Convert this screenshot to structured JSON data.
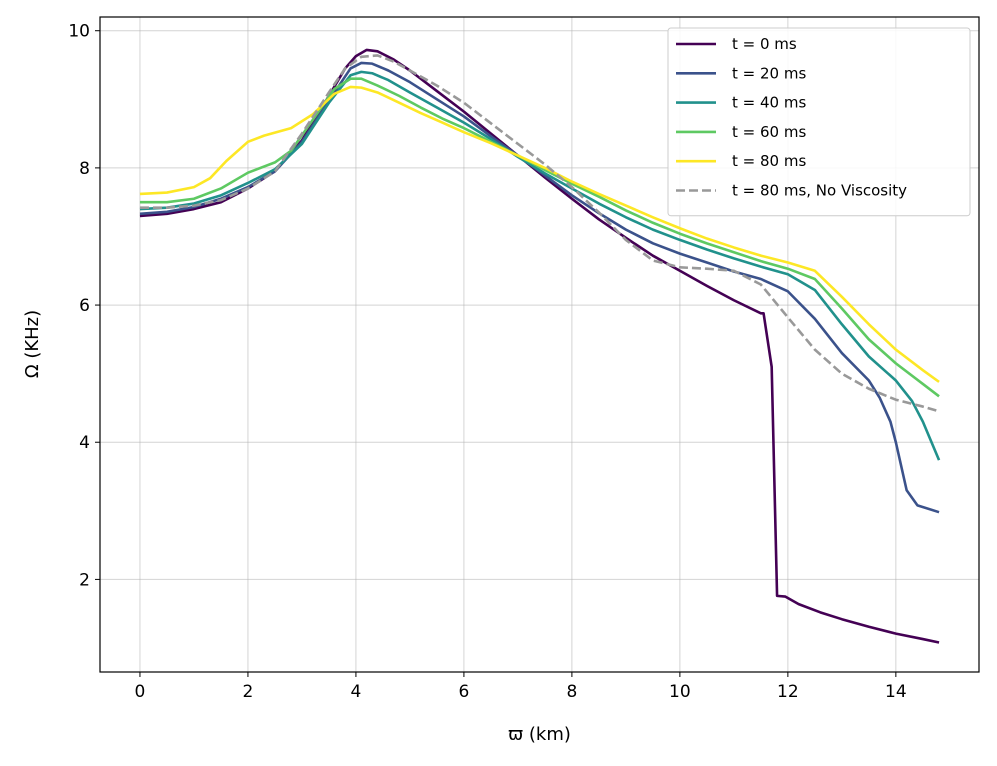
{
  "chart_data": {
    "type": "line",
    "title": "",
    "xlabel": "ϖ (km)",
    "ylabel": "Ω (KHz)",
    "xlim": [
      -0.74,
      15.54
    ],
    "ylim": [
      0.65,
      10.2
    ],
    "xticks": [
      0,
      2,
      4,
      6,
      8,
      10,
      12,
      14
    ],
    "yticks": [
      2,
      4,
      6,
      8,
      10
    ],
    "grid": true,
    "legend_position": "top-right",
    "series": [
      {
        "name": "t = 0 ms",
        "color": "#440154",
        "style": "solid",
        "x": [
          0,
          0.5,
          1,
          1.5,
          2,
          2.5,
          3,
          3.5,
          3.8,
          4.0,
          4.2,
          4.4,
          4.7,
          5,
          5.5,
          6,
          6.5,
          7,
          7.5,
          8,
          8.5,
          9,
          9.5,
          10,
          10.5,
          11,
          11.5,
          11.55,
          11.7,
          11.8,
          11.95,
          12.2,
          12.6,
          13,
          13.5,
          14,
          14.5,
          14.8
        ],
        "y": [
          7.3,
          7.33,
          7.4,
          7.5,
          7.7,
          7.95,
          8.4,
          9.05,
          9.45,
          9.63,
          9.72,
          9.7,
          9.58,
          9.42,
          9.12,
          8.82,
          8.5,
          8.18,
          7.86,
          7.55,
          7.25,
          6.98,
          6.72,
          6.5,
          6.28,
          6.07,
          5.88,
          5.88,
          5.1,
          1.76,
          1.75,
          1.64,
          1.52,
          1.42,
          1.31,
          1.21,
          1.13,
          1.08
        ]
      },
      {
        "name": "t = 20 ms",
        "color": "#3b528b",
        "style": "solid",
        "x": [
          0,
          0.5,
          1,
          1.5,
          2,
          2.5,
          3,
          3.5,
          3.9,
          4.1,
          4.3,
          4.6,
          5,
          5.5,
          6,
          6.5,
          7,
          7.5,
          8,
          8.5,
          9,
          9.5,
          10,
          10.5,
          11,
          11.5,
          12,
          12.5,
          13,
          13.5,
          13.7,
          13.9,
          14.0,
          14.2,
          14.4,
          14.8
        ],
        "y": [
          7.33,
          7.36,
          7.43,
          7.55,
          7.72,
          7.95,
          8.38,
          8.98,
          9.45,
          9.53,
          9.52,
          9.42,
          9.25,
          9.0,
          8.75,
          8.46,
          8.18,
          7.89,
          7.6,
          7.34,
          7.1,
          6.9,
          6.75,
          6.62,
          6.49,
          6.38,
          6.2,
          5.8,
          5.3,
          4.9,
          4.65,
          4.3,
          4.0,
          3.3,
          3.08,
          2.98
        ]
      },
      {
        "name": "t = 40 ms",
        "color": "#21918c",
        "style": "solid",
        "x": [
          0,
          0.5,
          1,
          1.5,
          2,
          2.5,
          3,
          3.5,
          3.9,
          4.1,
          4.3,
          4.6,
          5,
          5.5,
          6,
          6.5,
          7,
          7.5,
          8,
          8.5,
          9,
          9.5,
          10,
          10.5,
          11,
          11.5,
          12,
          12.5,
          13,
          13.5,
          14,
          14.3,
          14.5,
          14.8
        ],
        "y": [
          7.4,
          7.42,
          7.48,
          7.6,
          7.78,
          7.98,
          8.35,
          8.95,
          9.35,
          9.4,
          9.38,
          9.28,
          9.1,
          8.88,
          8.66,
          8.42,
          8.16,
          7.92,
          7.7,
          7.48,
          7.28,
          7.1,
          6.95,
          6.81,
          6.68,
          6.56,
          6.45,
          6.22,
          5.72,
          5.25,
          4.9,
          4.6,
          4.3,
          3.74
        ]
      },
      {
        "name": "t = 60 ms",
        "color": "#5ec962",
        "style": "solid",
        "x": [
          0,
          0.5,
          1,
          1.5,
          2,
          2.5,
          2.8,
          3.2,
          3.6,
          3.9,
          4.1,
          4.4,
          4.8,
          5.2,
          5.6,
          6,
          6.5,
          7,
          7.5,
          8,
          8.5,
          9,
          9.5,
          10,
          10.5,
          11,
          11.5,
          12,
          12.5,
          13,
          13.5,
          14,
          14.5,
          14.8
        ],
        "y": [
          7.5,
          7.5,
          7.55,
          7.7,
          7.93,
          8.08,
          8.25,
          8.7,
          9.15,
          9.3,
          9.3,
          9.2,
          9.05,
          8.88,
          8.72,
          8.58,
          8.38,
          8.18,
          7.97,
          7.77,
          7.58,
          7.38,
          7.2,
          7.04,
          6.9,
          6.77,
          6.64,
          6.53,
          6.38,
          5.95,
          5.5,
          5.15,
          4.85,
          4.67
        ]
      },
      {
        "name": "t = 80 ms",
        "color": "#fde725",
        "style": "solid",
        "x": [
          0,
          0.5,
          1,
          1.3,
          1.6,
          2.0,
          2.3,
          2.8,
          3.2,
          3.6,
          3.9,
          4.1,
          4.4,
          4.8,
          5.2,
          5.6,
          6,
          6.5,
          7,
          7.5,
          8,
          8.5,
          9,
          9.5,
          10,
          10.5,
          11,
          11.5,
          12,
          12.5,
          13,
          13.5,
          14,
          14.5,
          14.8
        ],
        "y": [
          7.62,
          7.64,
          7.72,
          7.85,
          8.1,
          8.38,
          8.47,
          8.58,
          8.78,
          9.08,
          9.18,
          9.17,
          9.1,
          8.95,
          8.8,
          8.66,
          8.52,
          8.36,
          8.18,
          8.0,
          7.8,
          7.62,
          7.45,
          7.28,
          7.12,
          6.97,
          6.84,
          6.72,
          6.62,
          6.5,
          6.12,
          5.72,
          5.35,
          5.05,
          4.88
        ]
      },
      {
        "name": "t = 80 ms, No Viscosity",
        "color": "#999999",
        "style": "dashed",
        "x": [
          0,
          0.5,
          1,
          1.5,
          2,
          2.5,
          3,
          3.5,
          3.8,
          4.1,
          4.4,
          4.7,
          5,
          5.5,
          6,
          6.5,
          7,
          7.5,
          8,
          8.5,
          9,
          9.5,
          10,
          10.5,
          11,
          11.5,
          12,
          12.5,
          13,
          13.5,
          14,
          14.5,
          14.8
        ],
        "y": [
          7.42,
          7.42,
          7.45,
          7.53,
          7.7,
          7.95,
          8.5,
          9.1,
          9.45,
          9.62,
          9.64,
          9.55,
          9.42,
          9.2,
          8.95,
          8.65,
          8.35,
          8.05,
          7.72,
          7.35,
          6.95,
          6.65,
          6.55,
          6.53,
          6.5,
          6.3,
          5.82,
          5.35,
          5.0,
          4.78,
          4.62,
          4.52,
          4.45
        ]
      }
    ]
  }
}
